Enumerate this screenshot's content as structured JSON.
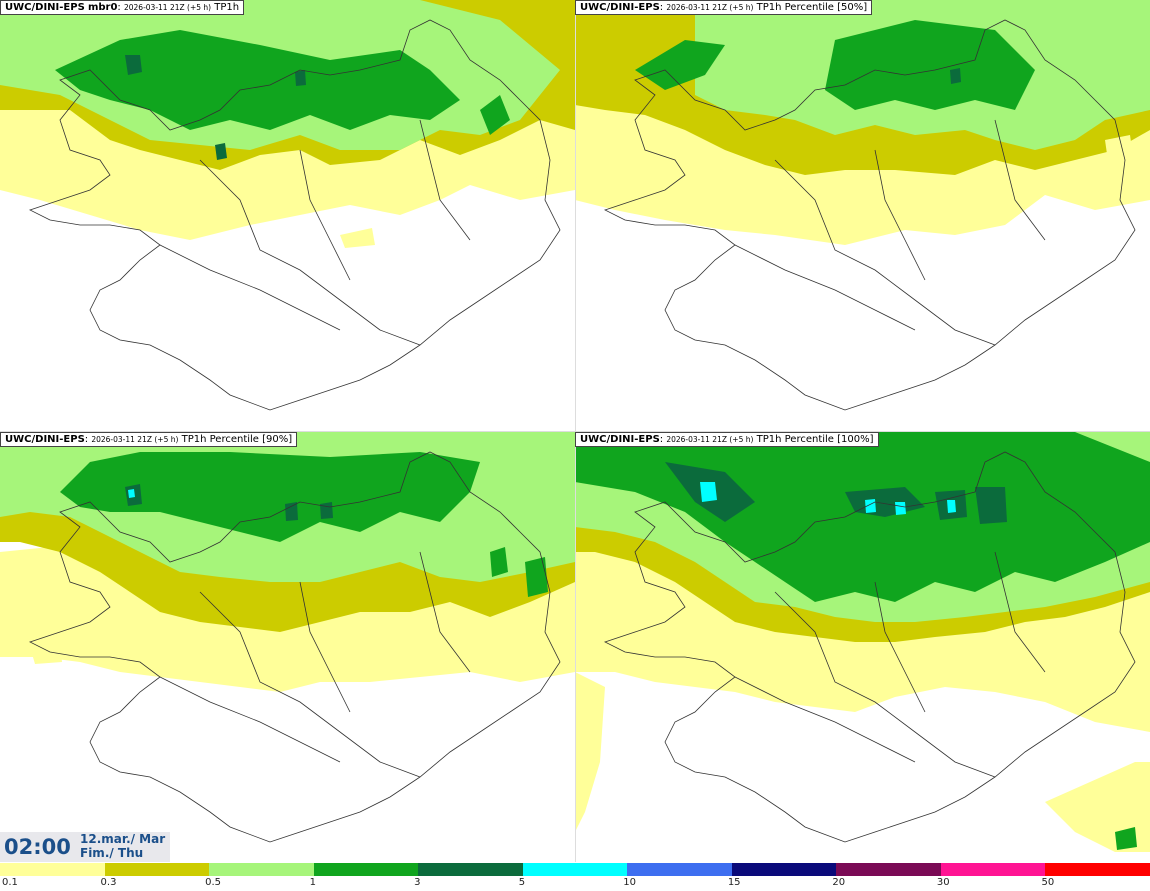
{
  "panels": [
    {
      "model": "UWC/DINI-EPS",
      "member": "mbr0",
      "run": "2026-03-11 21Z (+5 h)",
      "field": "TP1h"
    },
    {
      "model": "UWC/DINI-EPS",
      "member": "",
      "run": "2026-03-11 21Z (+5 h)",
      "field": "TP1h Percentile [50%]"
    },
    {
      "model": "UWC/DINI-EPS",
      "member": "",
      "run": "2026-03-11 21Z (+5 h)",
      "field": "TP1h Percentile [90%]"
    },
    {
      "model": "UWC/DINI-EPS",
      "member": "",
      "run": "2026-03-11 21Z (+5 h)",
      "field": "TP1h Percentile [100%]"
    }
  ],
  "valid_time": {
    "time": "02:00",
    "date_line1": "12.mar./ Mar",
    "date_line2": "Fim./ Thu"
  },
  "legend": {
    "ticks": [
      "0.1",
      "0.3",
      "0.5",
      "1",
      "3",
      "5",
      "10",
      "15",
      "20",
      "30",
      "50"
    ],
    "colors": [
      "#ffff99",
      "#cccc00",
      "#a6f57a",
      "#10a51e",
      "#0b6b3c",
      "#00ffff",
      "#3d6ef0",
      "#0a0a7a",
      "#7a0a55",
      "#ff1493",
      "#ff0000"
    ]
  },
  "map_colors": {
    "c01": "#ffff99",
    "c03": "#cccc00",
    "c05": "#a6f57a",
    "c1": "#10a51e",
    "c3": "#0b6b3c",
    "c5": "#00ffff",
    "coast": "#333333"
  }
}
